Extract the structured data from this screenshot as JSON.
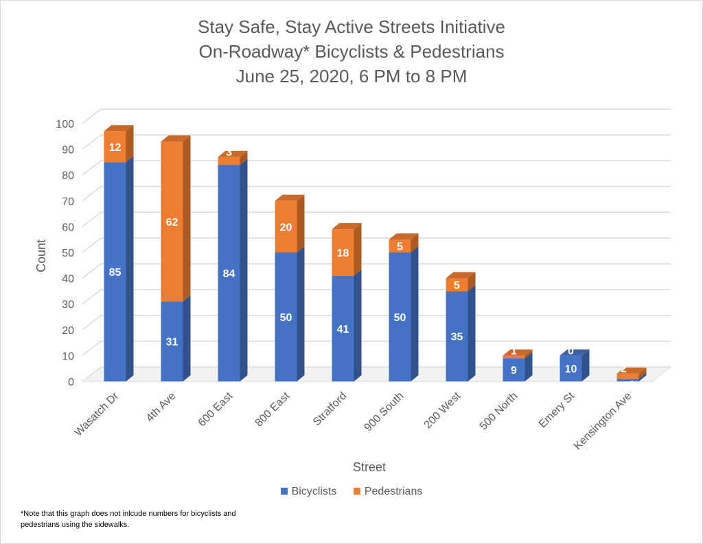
{
  "chart_data": {
    "type": "bar",
    "stacked": true,
    "title_lines": [
      "Stay Safe, Stay Active Streets Initiative",
      "On-Roadway* Bicyclists & Pedestrians",
      "June 25, 2020, 6 PM to 8 PM"
    ],
    "xlabel": "Street",
    "ylabel": "Count",
    "ylim": [
      0,
      100
    ],
    "yticks": [
      0,
      10,
      20,
      30,
      40,
      50,
      60,
      70,
      80,
      90,
      100
    ],
    "grid": true,
    "legend_position": "bottom",
    "categories": [
      "Wasatch Dr",
      "4th Ave",
      "600 East",
      "800 East",
      "Stratford",
      "900 South",
      "200 West",
      "500 North",
      "Emery St",
      "Kensington Ave"
    ],
    "series": [
      {
        "name": "Bicyclists",
        "color": "#4472c4",
        "values": [
          85,
          31,
          84,
          50,
          41,
          50,
          35,
          9,
          10,
          1
        ]
      },
      {
        "name": "Pedestrians",
        "color": "#ed7d31",
        "values": [
          12,
          62,
          3,
          20,
          18,
          5,
          5,
          1,
          0,
          2
        ]
      }
    ],
    "footnote": "*Note that this graph does not inlcude numbers for bicyclists and pedestrians using the sidewalks."
  }
}
